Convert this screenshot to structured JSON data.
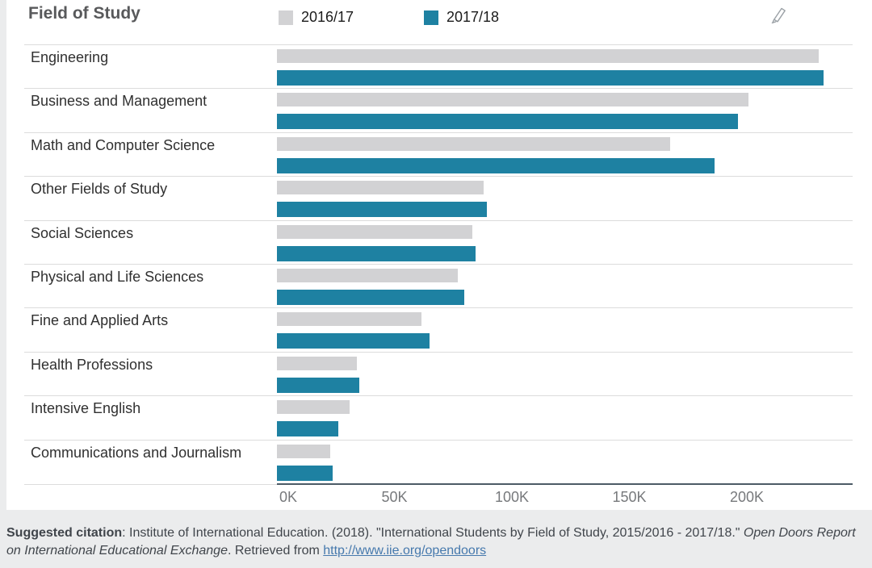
{
  "chart_data": {
    "type": "bar",
    "orientation": "horizontal",
    "title": "Field of Study",
    "legend_position": "top",
    "grid": "row-separators-only",
    "categories": [
      "Engineering",
      "Business and Management",
      "Math and Computer Science",
      "Other Fields of Study",
      "Social Sciences",
      "Physical and Life Sciences",
      "Fine and Applied Arts",
      "Health Professions",
      "Intensive English",
      "Communications and Journalism"
    ],
    "series": [
      {
        "name": "2016/17",
        "color": "#d2d2d4",
        "values": [
          230711,
          200754,
          167180,
          87800,
          83046,
          76838,
          61506,
          33947,
          31000,
          22800
        ]
      },
      {
        "name": "2017/18",
        "color": "#1e81a2",
        "values": [
          232710,
          196054,
          186195,
          89200,
          84480,
          79600,
          64934,
          35160,
          26100,
          23700
        ]
      }
    ],
    "x_axis": {
      "ticks": [
        "0K",
        "50K",
        "100K",
        "150K",
        "200K"
      ],
      "tick_values": [
        0,
        50000,
        100000,
        150000,
        200000
      ],
      "max": 245000
    }
  },
  "header": {
    "edit_icon": "pencil-icon"
  },
  "citation": {
    "label": "Suggested citation",
    "text": ": Institute of International Education. (2018). \"International Students by Field of Study, 2015/2016 - 2017/18.\" ",
    "italic": "Open Doors Report on International Educational Exchange",
    "after_italic": ". Retrieved from ",
    "link_text": "http://www.iie.org/opendoors"
  },
  "colors": {
    "bar_2016_17": "#d2d2d4",
    "bar_2017_18": "#1e81a2",
    "axis_line": "#4c5b66",
    "row_separator": "#dcdcdc",
    "page_background": "#ebeced",
    "link": "#4679ad",
    "title_text": "#58595b"
  }
}
